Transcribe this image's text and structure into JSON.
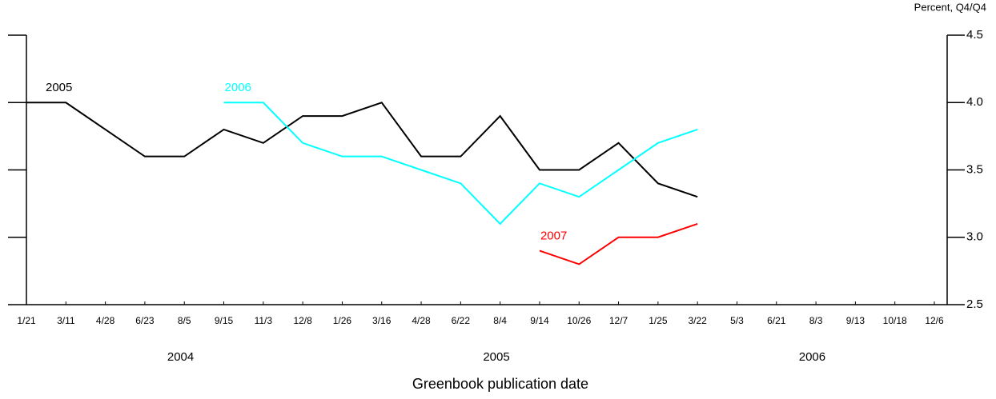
{
  "chart_data": {
    "type": "line",
    "y_axis_label": "Percent, Q4/Q4",
    "x_axis_label": "Greenbook publication date",
    "categories": [
      "1/21",
      "3/11",
      "4/28",
      "6/23",
      "8/5",
      "9/15",
      "11/3",
      "12/8",
      "1/26",
      "3/16",
      "4/28",
      "6/22",
      "8/4",
      "9/14",
      "10/26",
      "12/7",
      "1/25",
      "3/22",
      "5/3",
      "6/21",
      "8/3",
      "9/13",
      "10/18",
      "12/6"
    ],
    "year_labels": [
      "2004",
      "2005",
      "2006"
    ],
    "series": [
      {
        "name": "2005",
        "color": "#000000",
        "values": [
          4.0,
          4.0,
          3.8,
          3.6,
          3.6,
          3.8,
          3.7,
          3.9,
          3.9,
          4.0,
          3.6,
          3.6,
          3.9,
          3.5,
          3.5,
          3.7,
          3.4,
          3.3,
          null,
          null,
          null,
          null,
          null,
          null
        ]
      },
      {
        "name": "2006",
        "color": "#00ffff",
        "values": [
          null,
          null,
          null,
          null,
          null,
          4.0,
          4.0,
          3.7,
          3.6,
          3.6,
          3.5,
          3.4,
          3.1,
          3.4,
          3.3,
          3.5,
          3.7,
          3.8,
          null,
          null,
          null,
          null,
          null,
          null
        ]
      },
      {
        "name": "2007",
        "color": "#ff0000",
        "values": [
          null,
          null,
          null,
          null,
          null,
          null,
          null,
          null,
          null,
          null,
          null,
          null,
          null,
          2.9,
          2.8,
          3.0,
          3.0,
          3.1,
          null,
          null,
          null,
          null,
          null,
          null
        ]
      }
    ],
    "ylim": [
      2.5,
      4.5
    ],
    "yticks": [
      {
        "value": 2.5,
        "label": "2.5"
      },
      {
        "value": 3.0,
        "label": "3.0"
      },
      {
        "value": 3.5,
        "label": "3.5"
      },
      {
        "value": 4.0,
        "label": "4.0"
      },
      {
        "value": 4.5,
        "label": "4.5"
      }
    ]
  }
}
